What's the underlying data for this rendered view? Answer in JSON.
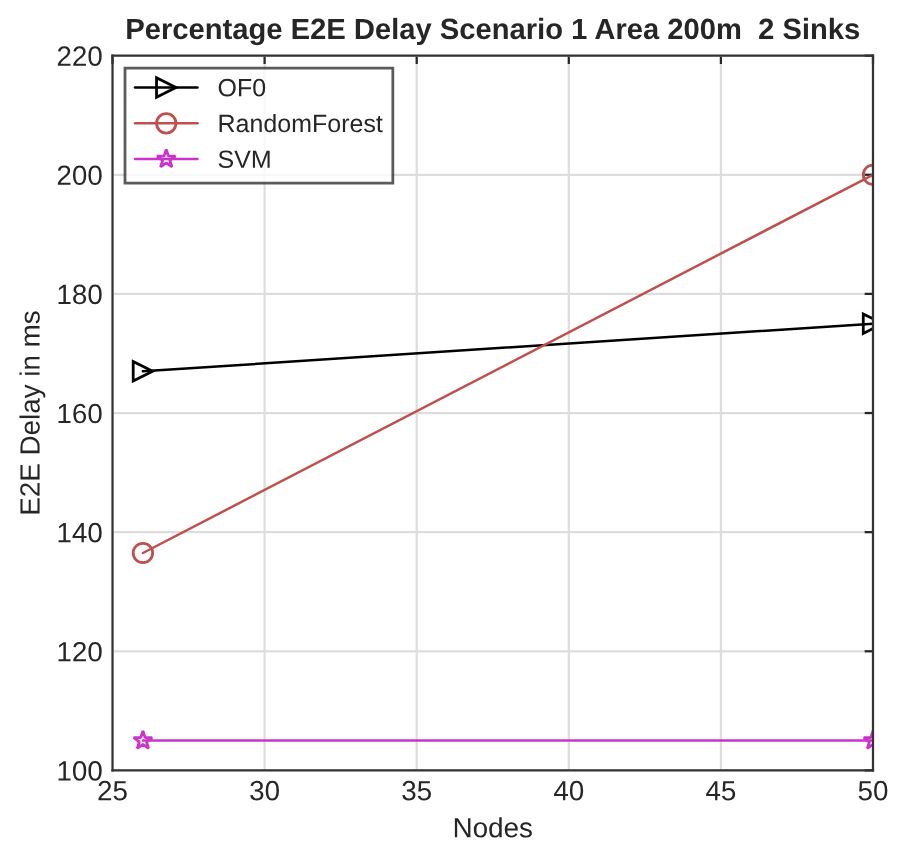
{
  "chart_data": {
    "type": "line",
    "title": "Percentage E2E Delay Scenario 1 Area 200m  2 Sinks",
    "xlabel": "Nodes",
    "ylabel": "E2E Delay in ms",
    "x": [
      26,
      50
    ],
    "series": [
      {
        "name": "OF0",
        "color": "#000000",
        "values": [
          167,
          175
        ],
        "marker": "triangle"
      },
      {
        "name": "RandomForest",
        "color": "#c0504d",
        "values": [
          136.5,
          200
        ],
        "marker": "circle"
      },
      {
        "name": "SVM",
        "color": "#cc33cc",
        "values": [
          105,
          105
        ],
        "marker": "star"
      }
    ],
    "xlim": [
      25,
      50
    ],
    "xticks": [
      25,
      30,
      35,
      40,
      45,
      50
    ],
    "ylim": [
      100,
      220
    ],
    "yticks": [
      100,
      120,
      140,
      160,
      180,
      200,
      220
    ],
    "grid": true,
    "legend": "top left",
    "line_style": "solid"
  }
}
